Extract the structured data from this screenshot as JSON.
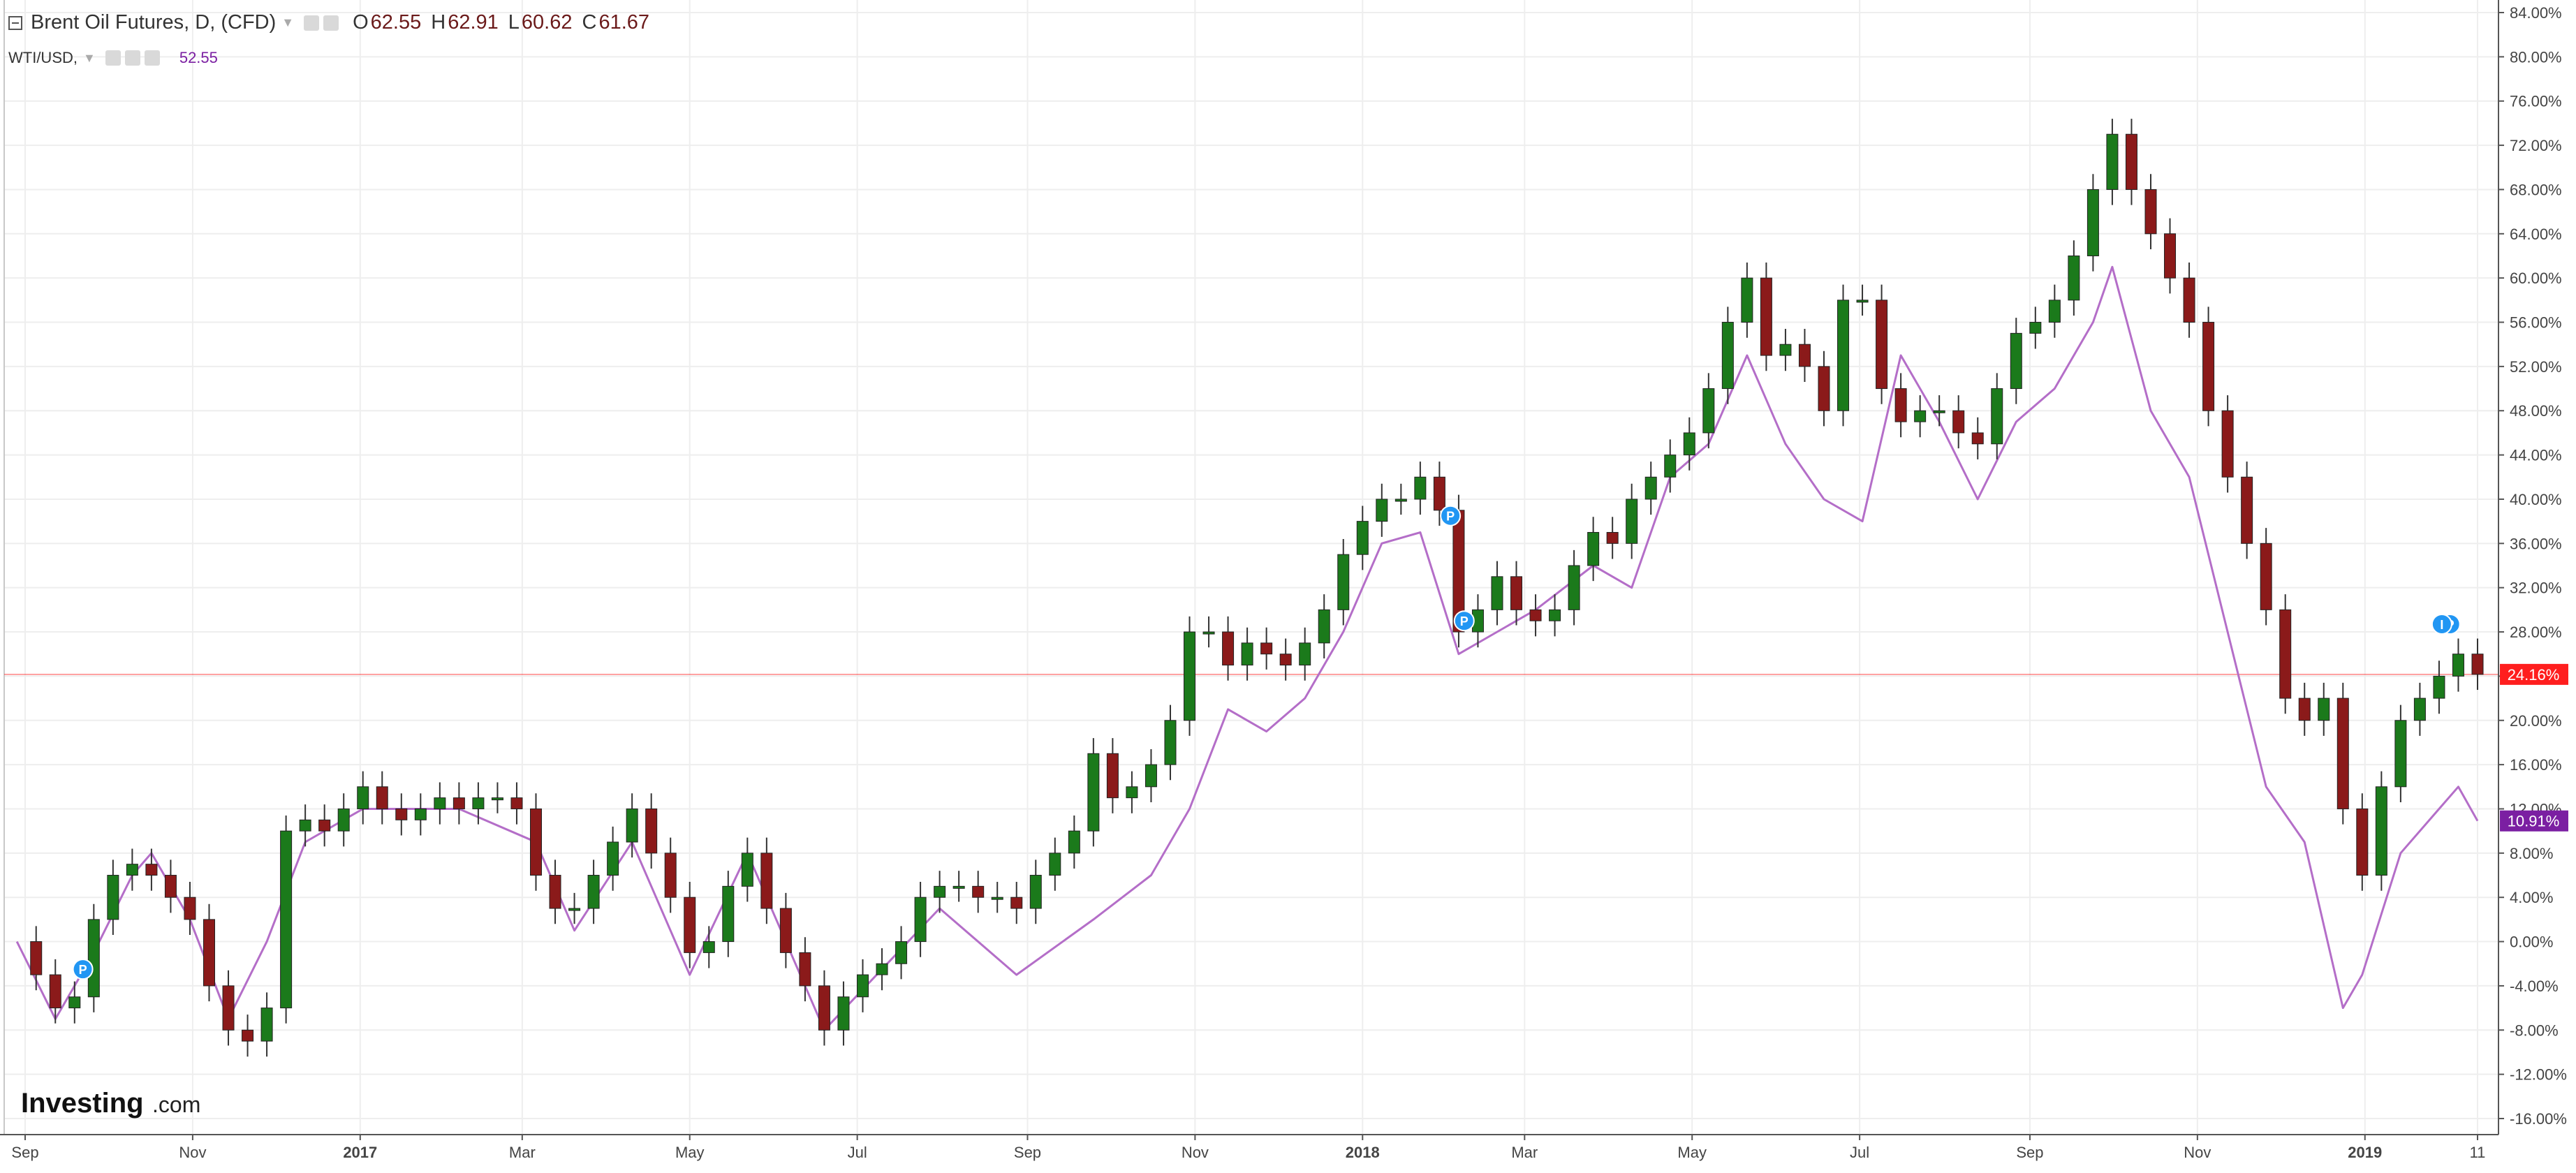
{
  "header": {
    "main_symbol": "Brent Oil Futures, D, (CFD)",
    "ohlc": [
      {
        "key": "O",
        "value": "62.55"
      },
      {
        "key": "H",
        "value": "62.91"
      },
      {
        "key": "L",
        "value": "60.62"
      },
      {
        "key": "C",
        "value": "61.67"
      }
    ],
    "compare_symbol": "WTI/USD,",
    "compare_value": "52.55"
  },
  "watermark": {
    "brand": "Investing",
    "suffix": ".com"
  },
  "colors": {
    "up": "#1b7a1b",
    "down": "#8b1a1a",
    "wti_line": "#b46ec8",
    "last_price": "#ff1e1e",
    "wti_badge": "#7b1fa2",
    "marker": "#2196f3",
    "grid": "#eeeeee"
  },
  "chart_data": {
    "type": "line",
    "title": "",
    "xlabel": "",
    "ylabel": "",
    "y_unit": "%",
    "ylim": [
      -17,
      85
    ],
    "grid": true,
    "y_tick_labels": [
      "84.00%",
      "80.00%",
      "76.00%",
      "72.00%",
      "68.00%",
      "64.00%",
      "60.00%",
      "56.00%",
      "52.00%",
      "48.00%",
      "44.00%",
      "40.00%",
      "36.00%",
      "32.00%",
      "28.00%",
      "24.00%",
      "20.00%",
      "16.00%",
      "12.00%",
      "8.00%",
      "4.00%",
      "0.00%",
      "-4.00%",
      "-8.00%",
      "-12.00%",
      "-16.00%"
    ],
    "x_tick_labels": [
      {
        "label": "Sep",
        "date": "2016-09-01"
      },
      {
        "label": "Nov",
        "date": "2016-11-01"
      },
      {
        "label": "2017",
        "date": "2017-01-01"
      },
      {
        "label": "Mar",
        "date": "2017-03-01"
      },
      {
        "label": "May",
        "date": "2017-05-01"
      },
      {
        "label": "Jul",
        "date": "2017-07-01"
      },
      {
        "label": "Sep",
        "date": "2017-09-01"
      },
      {
        "label": "Nov",
        "date": "2017-11-01"
      },
      {
        "label": "2018",
        "date": "2018-01-01"
      },
      {
        "label": "Mar",
        "date": "2018-03-01"
      },
      {
        "label": "May",
        "date": "2018-05-01"
      },
      {
        "label": "Jul",
        "date": "2018-07-01"
      },
      {
        "label": "Sep",
        "date": "2018-09-01"
      },
      {
        "label": "Nov",
        "date": "2018-11-01"
      },
      {
        "label": "2019",
        "date": "2019-01-01"
      },
      {
        "label": "11",
        "date": "2019-02-11"
      }
    ],
    "year_labels": [
      "2017",
      "2018",
      "2019"
    ],
    "last_value_labels": [
      {
        "series": "Brent Oil Futures",
        "label": "24.16%",
        "value": 24.16
      },
      {
        "series": "WTI/USD",
        "label": "10.91%",
        "value": 10.91
      }
    ],
    "event_markers": [
      {
        "label": "P",
        "date": "2016-09-22",
        "value": -2.5
      },
      {
        "label": "P",
        "date": "2018-02-02",
        "value": 38.5
      },
      {
        "label": "P",
        "date": "2018-02-07",
        "value": 29.0
      },
      {
        "label": "P",
        "date": "2019-02-01",
        "value": 28.7
      },
      {
        "label": "I",
        "date": "2019-01-29",
        "value": 28.7
      }
    ],
    "series": [
      {
        "name": "Brent Oil Futures",
        "kind": "candlestick",
        "points": [
          {
            "date": "2016-08-29",
            "value": 0.0
          },
          {
            "date": "2016-09-05",
            "value": -3.0
          },
          {
            "date": "2016-09-12",
            "value": -6.0
          },
          {
            "date": "2016-09-19",
            "value": -5.0
          },
          {
            "date": "2016-09-26",
            "value": 2.0
          },
          {
            "date": "2016-10-03",
            "value": 6.0
          },
          {
            "date": "2016-10-10",
            "value": 7.0
          },
          {
            "date": "2016-10-17",
            "value": 6.0
          },
          {
            "date": "2016-10-24",
            "value": 4.0
          },
          {
            "date": "2016-10-31",
            "value": 2.0
          },
          {
            "date": "2016-11-07",
            "value": -4.0
          },
          {
            "date": "2016-11-14",
            "value": -8.0
          },
          {
            "date": "2016-11-21",
            "value": -9.0
          },
          {
            "date": "2016-11-28",
            "value": -6.0
          },
          {
            "date": "2016-12-05",
            "value": 10.0
          },
          {
            "date": "2016-12-12",
            "value": 11.0
          },
          {
            "date": "2016-12-19",
            "value": 10.0
          },
          {
            "date": "2016-12-26",
            "value": 12.0
          },
          {
            "date": "2017-01-02",
            "value": 14.0
          },
          {
            "date": "2017-01-09",
            "value": 12.0
          },
          {
            "date": "2017-01-16",
            "value": 11.0
          },
          {
            "date": "2017-01-23",
            "value": 12.0
          },
          {
            "date": "2017-01-30",
            "value": 13.0
          },
          {
            "date": "2017-02-06",
            "value": 12.0
          },
          {
            "date": "2017-02-13",
            "value": 13.0
          },
          {
            "date": "2017-02-20",
            "value": 13.0
          },
          {
            "date": "2017-02-27",
            "value": 12.0
          },
          {
            "date": "2017-03-06",
            "value": 6.0
          },
          {
            "date": "2017-03-13",
            "value": 3.0
          },
          {
            "date": "2017-03-20",
            "value": 3.0
          },
          {
            "date": "2017-03-27",
            "value": 6.0
          },
          {
            "date": "2017-04-03",
            "value": 9.0
          },
          {
            "date": "2017-04-10",
            "value": 12.0
          },
          {
            "date": "2017-04-17",
            "value": 8.0
          },
          {
            "date": "2017-04-24",
            "value": 4.0
          },
          {
            "date": "2017-05-01",
            "value": -1.0
          },
          {
            "date": "2017-05-08",
            "value": 0.0
          },
          {
            "date": "2017-05-15",
            "value": 5.0
          },
          {
            "date": "2017-05-22",
            "value": 8.0
          },
          {
            "date": "2017-05-29",
            "value": 3.0
          },
          {
            "date": "2017-06-05",
            "value": -1.0
          },
          {
            "date": "2017-06-12",
            "value": -4.0
          },
          {
            "date": "2017-06-19",
            "value": -8.0
          },
          {
            "date": "2017-06-26",
            "value": -5.0
          },
          {
            "date": "2017-07-03",
            "value": -3.0
          },
          {
            "date": "2017-07-10",
            "value": -2.0
          },
          {
            "date": "2017-07-17",
            "value": 0.0
          },
          {
            "date": "2017-07-24",
            "value": 4.0
          },
          {
            "date": "2017-07-31",
            "value": 5.0
          },
          {
            "date": "2017-08-07",
            "value": 5.0
          },
          {
            "date": "2017-08-14",
            "value": 4.0
          },
          {
            "date": "2017-08-21",
            "value": 4.0
          },
          {
            "date": "2017-08-28",
            "value": 3.0
          },
          {
            "date": "2017-09-04",
            "value": 6.0
          },
          {
            "date": "2017-09-11",
            "value": 8.0
          },
          {
            "date": "2017-09-18",
            "value": 10.0
          },
          {
            "date": "2017-09-25",
            "value": 17.0
          },
          {
            "date": "2017-10-02",
            "value": 13.0
          },
          {
            "date": "2017-10-09",
            "value": 14.0
          },
          {
            "date": "2017-10-16",
            "value": 16.0
          },
          {
            "date": "2017-10-23",
            "value": 20.0
          },
          {
            "date": "2017-10-30",
            "value": 28.0
          },
          {
            "date": "2017-11-06",
            "value": 28.0
          },
          {
            "date": "2017-11-13",
            "value": 25.0
          },
          {
            "date": "2017-11-20",
            "value": 27.0
          },
          {
            "date": "2017-11-27",
            "value": 26.0
          },
          {
            "date": "2017-12-04",
            "value": 25.0
          },
          {
            "date": "2017-12-11",
            "value": 27.0
          },
          {
            "date": "2017-12-18",
            "value": 30.0
          },
          {
            "date": "2017-12-25",
            "value": 35.0
          },
          {
            "date": "2018-01-01",
            "value": 38.0
          },
          {
            "date": "2018-01-08",
            "value": 40.0
          },
          {
            "date": "2018-01-15",
            "value": 40.0
          },
          {
            "date": "2018-01-22",
            "value": 42.0
          },
          {
            "date": "2018-01-29",
            "value": 39.0
          },
          {
            "date": "2018-02-05",
            "value": 28.0
          },
          {
            "date": "2018-02-12",
            "value": 30.0
          },
          {
            "date": "2018-02-19",
            "value": 33.0
          },
          {
            "date": "2018-02-26",
            "value": 30.0
          },
          {
            "date": "2018-03-05",
            "value": 29.0
          },
          {
            "date": "2018-03-12",
            "value": 30.0
          },
          {
            "date": "2018-03-19",
            "value": 34.0
          },
          {
            "date": "2018-03-26",
            "value": 37.0
          },
          {
            "date": "2018-04-02",
            "value": 36.0
          },
          {
            "date": "2018-04-09",
            "value": 40.0
          },
          {
            "date": "2018-04-16",
            "value": 42.0
          },
          {
            "date": "2018-04-23",
            "value": 44.0
          },
          {
            "date": "2018-04-30",
            "value": 46.0
          },
          {
            "date": "2018-05-07",
            "value": 50.0
          },
          {
            "date": "2018-05-14",
            "value": 56.0
          },
          {
            "date": "2018-05-21",
            "value": 60.0
          },
          {
            "date": "2018-05-28",
            "value": 53.0
          },
          {
            "date": "2018-06-04",
            "value": 54.0
          },
          {
            "date": "2018-06-11",
            "value": 52.0
          },
          {
            "date": "2018-06-18",
            "value": 48.0
          },
          {
            "date": "2018-06-25",
            "value": 58.0
          },
          {
            "date": "2018-07-02",
            "value": 58.0
          },
          {
            "date": "2018-07-09",
            "value": 50.0
          },
          {
            "date": "2018-07-16",
            "value": 47.0
          },
          {
            "date": "2018-07-23",
            "value": 48.0
          },
          {
            "date": "2018-07-30",
            "value": 48.0
          },
          {
            "date": "2018-08-06",
            "value": 46.0
          },
          {
            "date": "2018-08-13",
            "value": 45.0
          },
          {
            "date": "2018-08-20",
            "value": 50.0
          },
          {
            "date": "2018-08-27",
            "value": 55.0
          },
          {
            "date": "2018-09-03",
            "value": 56.0
          },
          {
            "date": "2018-09-10",
            "value": 58.0
          },
          {
            "date": "2018-09-17",
            "value": 62.0
          },
          {
            "date": "2018-09-24",
            "value": 68.0
          },
          {
            "date": "2018-10-01",
            "value": 73.0
          },
          {
            "date": "2018-10-08",
            "value": 68.0
          },
          {
            "date": "2018-10-15",
            "value": 64.0
          },
          {
            "date": "2018-10-22",
            "value": 60.0
          },
          {
            "date": "2018-10-29",
            "value": 56.0
          },
          {
            "date": "2018-11-05",
            "value": 48.0
          },
          {
            "date": "2018-11-12",
            "value": 42.0
          },
          {
            "date": "2018-11-19",
            "value": 36.0
          },
          {
            "date": "2018-11-26",
            "value": 30.0
          },
          {
            "date": "2018-12-03",
            "value": 22.0
          },
          {
            "date": "2018-12-10",
            "value": 20.0
          },
          {
            "date": "2018-12-17",
            "value": 22.0
          },
          {
            "date": "2018-12-24",
            "value": 12.0
          },
          {
            "date": "2018-12-31",
            "value": 6.0
          },
          {
            "date": "2019-01-07",
            "value": 14.0
          },
          {
            "date": "2019-01-14",
            "value": 20.0
          },
          {
            "date": "2019-01-21",
            "value": 22.0
          },
          {
            "date": "2019-01-28",
            "value": 24.0
          },
          {
            "date": "2019-02-04",
            "value": 26.0
          },
          {
            "date": "2019-02-11",
            "value": 24.16
          }
        ]
      },
      {
        "name": "WTI/USD",
        "kind": "line",
        "points": [
          {
            "date": "2016-08-29",
            "value": 0.0
          },
          {
            "date": "2016-09-12",
            "value": -7.0
          },
          {
            "date": "2016-09-26",
            "value": -1.0
          },
          {
            "date": "2016-10-10",
            "value": 6.0
          },
          {
            "date": "2016-10-17",
            "value": 8.0
          },
          {
            "date": "2016-10-31",
            "value": 2.0
          },
          {
            "date": "2016-11-14",
            "value": -7.0
          },
          {
            "date": "2016-11-28",
            "value": 0.0
          },
          {
            "date": "2016-12-12",
            "value": 9.0
          },
          {
            "date": "2017-01-02",
            "value": 12.0
          },
          {
            "date": "2017-02-06",
            "value": 12.0
          },
          {
            "date": "2017-03-06",
            "value": 9.0
          },
          {
            "date": "2017-03-20",
            "value": 1.0
          },
          {
            "date": "2017-04-10",
            "value": 9.0
          },
          {
            "date": "2017-05-01",
            "value": -3.0
          },
          {
            "date": "2017-05-22",
            "value": 8.0
          },
          {
            "date": "2017-06-19",
            "value": -8.0
          },
          {
            "date": "2017-07-31",
            "value": 3.0
          },
          {
            "date": "2017-08-28",
            "value": -3.0
          },
          {
            "date": "2017-09-25",
            "value": 2.0
          },
          {
            "date": "2017-10-16",
            "value": 6.0
          },
          {
            "date": "2017-10-30",
            "value": 12.0
          },
          {
            "date": "2017-11-13",
            "value": 21.0
          },
          {
            "date": "2017-11-27",
            "value": 19.0
          },
          {
            "date": "2017-12-11",
            "value": 22.0
          },
          {
            "date": "2017-12-25",
            "value": 28.0
          },
          {
            "date": "2018-01-08",
            "value": 36.0
          },
          {
            "date": "2018-01-22",
            "value": 37.0
          },
          {
            "date": "2018-02-05",
            "value": 26.0
          },
          {
            "date": "2018-02-19",
            "value": 28.0
          },
          {
            "date": "2018-03-05",
            "value": 30.0
          },
          {
            "date": "2018-03-26",
            "value": 34.0
          },
          {
            "date": "2018-04-09",
            "value": 32.0
          },
          {
            "date": "2018-04-23",
            "value": 42.0
          },
          {
            "date": "2018-05-07",
            "value": 45.0
          },
          {
            "date": "2018-05-21",
            "value": 53.0
          },
          {
            "date": "2018-06-04",
            "value": 45.0
          },
          {
            "date": "2018-06-18",
            "value": 40.0
          },
          {
            "date": "2018-07-02",
            "value": 38.0
          },
          {
            "date": "2018-07-16",
            "value": 53.0
          },
          {
            "date": "2018-07-30",
            "value": 47.0
          },
          {
            "date": "2018-08-13",
            "value": 40.0
          },
          {
            "date": "2018-08-27",
            "value": 47.0
          },
          {
            "date": "2018-09-10",
            "value": 50.0
          },
          {
            "date": "2018-09-24",
            "value": 56.0
          },
          {
            "date": "2018-10-01",
            "value": 61.0
          },
          {
            "date": "2018-10-15",
            "value": 48.0
          },
          {
            "date": "2018-10-29",
            "value": 42.0
          },
          {
            "date": "2018-11-12",
            "value": 28.0
          },
          {
            "date": "2018-11-26",
            "value": 14.0
          },
          {
            "date": "2018-12-10",
            "value": 9.0
          },
          {
            "date": "2018-12-24",
            "value": -6.0
          },
          {
            "date": "2018-12-31",
            "value": -3.0
          },
          {
            "date": "2019-01-14",
            "value": 8.0
          },
          {
            "date": "2019-01-28",
            "value": 12.0
          },
          {
            "date": "2019-02-04",
            "value": 14.0
          },
          {
            "date": "2019-02-11",
            "value": 10.91
          }
        ]
      }
    ]
  }
}
